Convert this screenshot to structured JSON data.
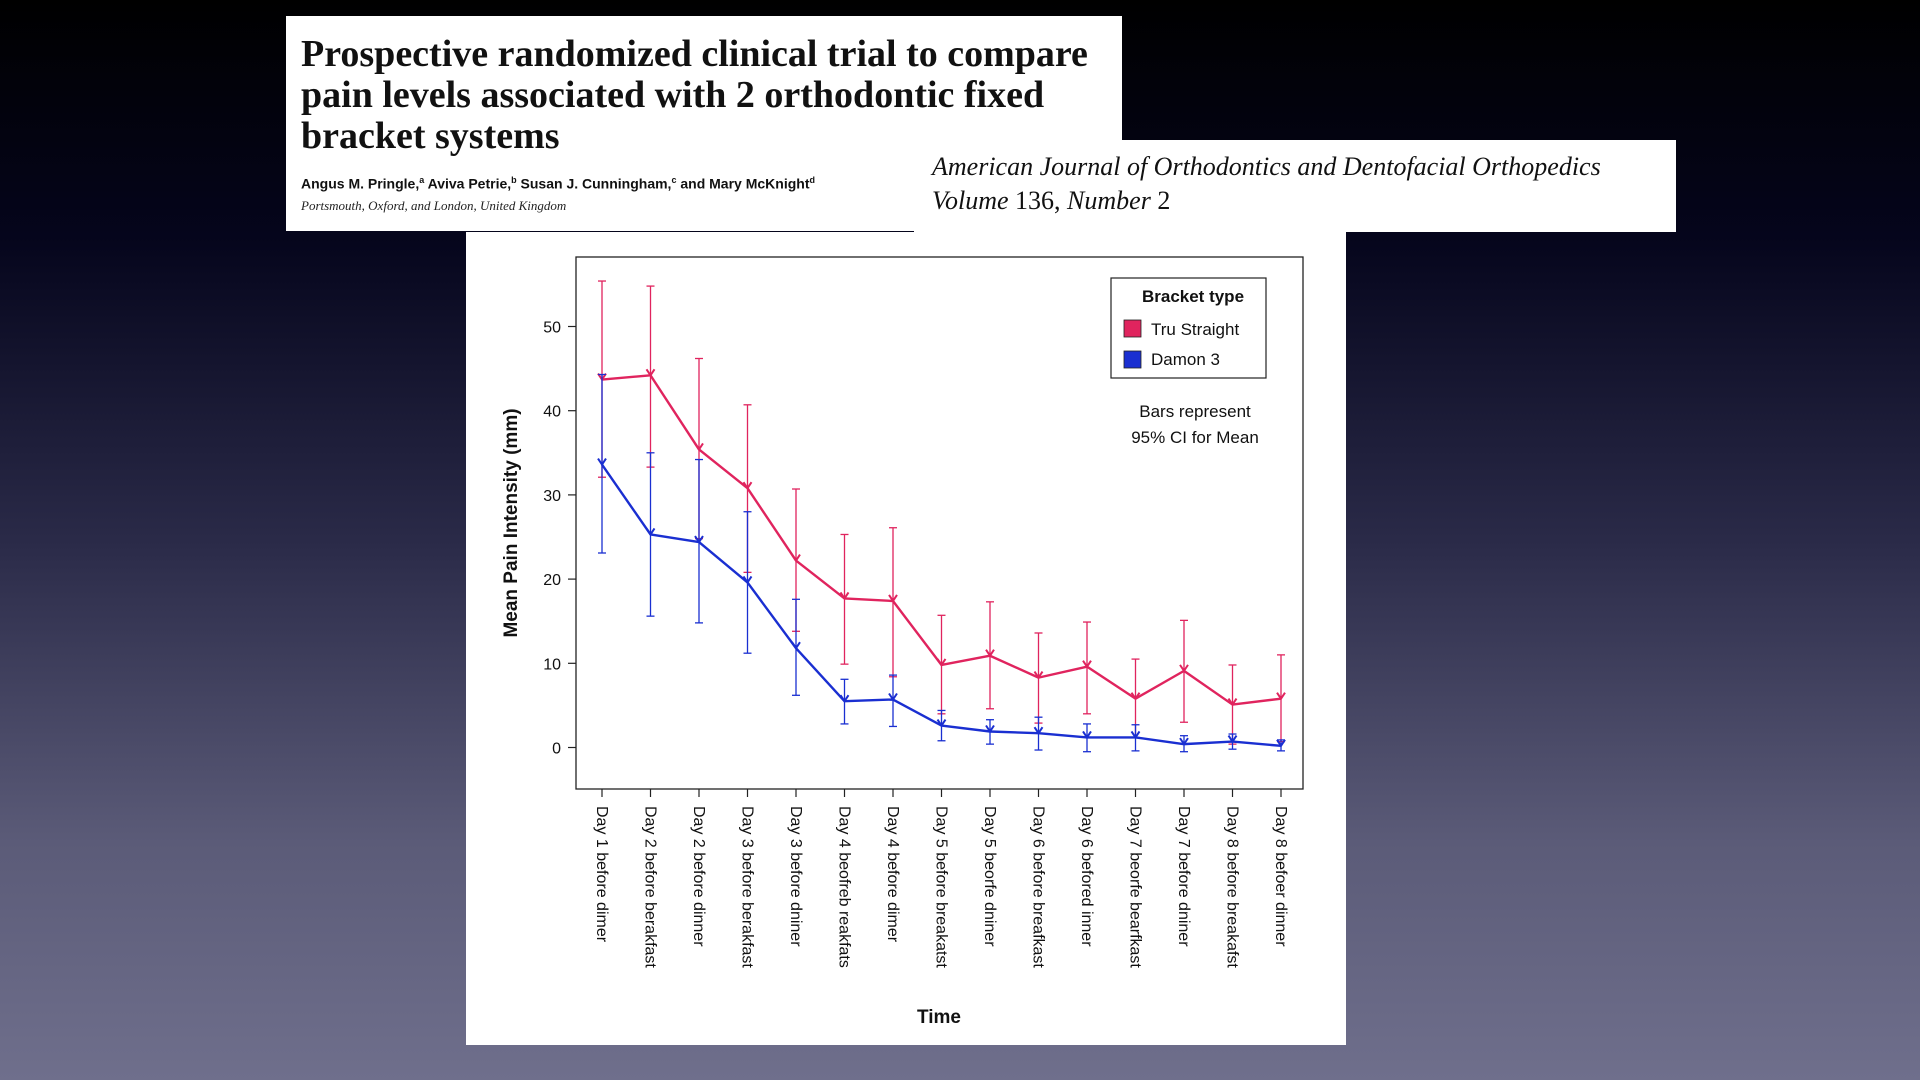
{
  "paper": {
    "title": "Prospective randomized clinical trial to compare pain levels associated with 2 orthodontic fixed bracket systems",
    "authors": [
      {
        "name": "Angus M. Pringle,",
        "sup": "a"
      },
      {
        "name": " Aviva Petrie,",
        "sup": "b"
      },
      {
        "name": " Susan J. Cunningham,",
        "sup": "c"
      },
      {
        "name": " and Mary McKnight",
        "sup": "d"
      }
    ],
    "affiliation": "Portsmouth, Oxford, and London, United Kingdom"
  },
  "journal": {
    "name": "American Journal of Orthodontics and Dentofacial Orthopedics",
    "volume_label": "Volume",
    "volume_number": "136,",
    "number_label": "Number",
    "number_value": "2"
  },
  "chart_data": {
    "type": "line",
    "title": "",
    "xlabel": "Time",
    "ylabel": "Mean Pain Intensity (mm)",
    "ylim": [
      -5,
      58
    ],
    "yticks": [
      0,
      10,
      20,
      30,
      40,
      50
    ],
    "legend": {
      "title": "Bracket type",
      "position": "top-right"
    },
    "annotation": [
      "Bars represent",
      "95% CI for Mean"
    ],
    "categories": [
      "Day 1 before dimer",
      "Day 2 before berakfast",
      "Day 2 before dinner",
      "Day 3 before berakfast",
      "Day 3 before dniner",
      "Day 4 beofreb reakfats",
      "Day 4 before dimer",
      "Day 5 before breakatst",
      "Day 5 beorfe dniner",
      "Day 6 before breafkast",
      "Day 6 befored inner",
      "Day 7 beorfe bearfkast",
      "Day 7 before dniner",
      "Day 8 before breakafst",
      "Day 8 befoer dinner"
    ],
    "series": [
      {
        "name": "Tru Straight",
        "color": "#e0245e",
        "values": [
          43.7,
          44.2,
          35.4,
          30.8,
          22.2,
          17.7,
          17.4,
          9.8,
          10.9,
          8.3,
          9.6,
          5.8,
          9.1,
          5.1,
          5.8
        ],
        "ci_upper": [
          55.4,
          54.8,
          46.2,
          40.7,
          30.7,
          25.3,
          26.1,
          15.7,
          17.3,
          13.6,
          14.9,
          10.5,
          15.1,
          9.8,
          11.0
        ],
        "ci_lower": [
          32.1,
          33.3,
          24.8,
          20.8,
          13.8,
          9.9,
          8.4,
          4.0,
          4.6,
          2.9,
          4.0,
          1.2,
          3.0,
          0.4,
          0.7
        ]
      },
      {
        "name": "Damon 3",
        "color": "#1a2fd1",
        "values": [
          33.6,
          25.3,
          24.4,
          19.6,
          11.8,
          5.5,
          5.7,
          2.6,
          1.9,
          1.7,
          1.2,
          1.2,
          0.4,
          0.7,
          0.2
        ],
        "ci_upper": [
          44.3,
          35.0,
          34.2,
          28.0,
          17.6,
          8.1,
          8.6,
          4.4,
          3.3,
          3.6,
          2.8,
          2.7,
          1.4,
          1.6,
          0.9
        ],
        "ci_lower": [
          23.1,
          15.6,
          14.8,
          11.2,
          6.2,
          2.8,
          2.5,
          0.8,
          0.4,
          -0.3,
          -0.5,
          -0.4,
          -0.5,
          -0.2,
          -0.4
        ]
      }
    ]
  }
}
